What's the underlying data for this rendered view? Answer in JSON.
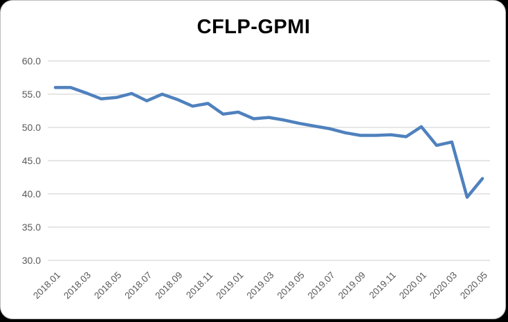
{
  "page": {
    "background": "#000000",
    "card_background": "#FFFFFF",
    "card_border": "#BDBDBD"
  },
  "chart_data": {
    "type": "line",
    "title": "CFLP-GPMI",
    "x": [
      "2018.01",
      "2018.02",
      "2018.03",
      "2018.04",
      "2018.05",
      "2018.06",
      "2018.07",
      "2018.08",
      "2018.09",
      "2018.10",
      "2018.11",
      "2018.12",
      "2019.01",
      "2019.02",
      "2019.03",
      "2019.04",
      "2019.05",
      "2019.06",
      "2019.07",
      "2019.08",
      "2019.09",
      "2019.10",
      "2019.11",
      "2019.12",
      "2020.01",
      "2020.02",
      "2020.03",
      "2020.04",
      "2020.05"
    ],
    "values": [
      56.0,
      56.0,
      55.2,
      54.3,
      54.5,
      55.1,
      54.0,
      55.0,
      54.2,
      53.2,
      53.6,
      52.0,
      52.3,
      51.3,
      51.5,
      51.1,
      50.6,
      50.2,
      49.8,
      49.2,
      48.8,
      48.8,
      48.9,
      48.6,
      50.1,
      47.3,
      47.8,
      39.5,
      42.3
    ],
    "ylim": [
      30,
      60
    ],
    "ytick_step": 5,
    "ytick_labels": [
      "60.0",
      "55.0",
      "50.0",
      "45.0",
      "40.0",
      "35.0",
      "30.0"
    ],
    "xtick_labels": [
      "2018.01",
      "2018.03",
      "2018.05",
      "2018.07",
      "2018.09",
      "2018.11",
      "2019.01",
      "2019.03",
      "2019.05",
      "2019.07",
      "2019.09",
      "2019.11",
      "2020.01",
      "2020.03",
      "2020.05"
    ],
    "grid": true,
    "legend": "none",
    "line_color": "#4F81BD",
    "gridline_color": "#D6D6D6",
    "axis_label_color": "#595959"
  }
}
